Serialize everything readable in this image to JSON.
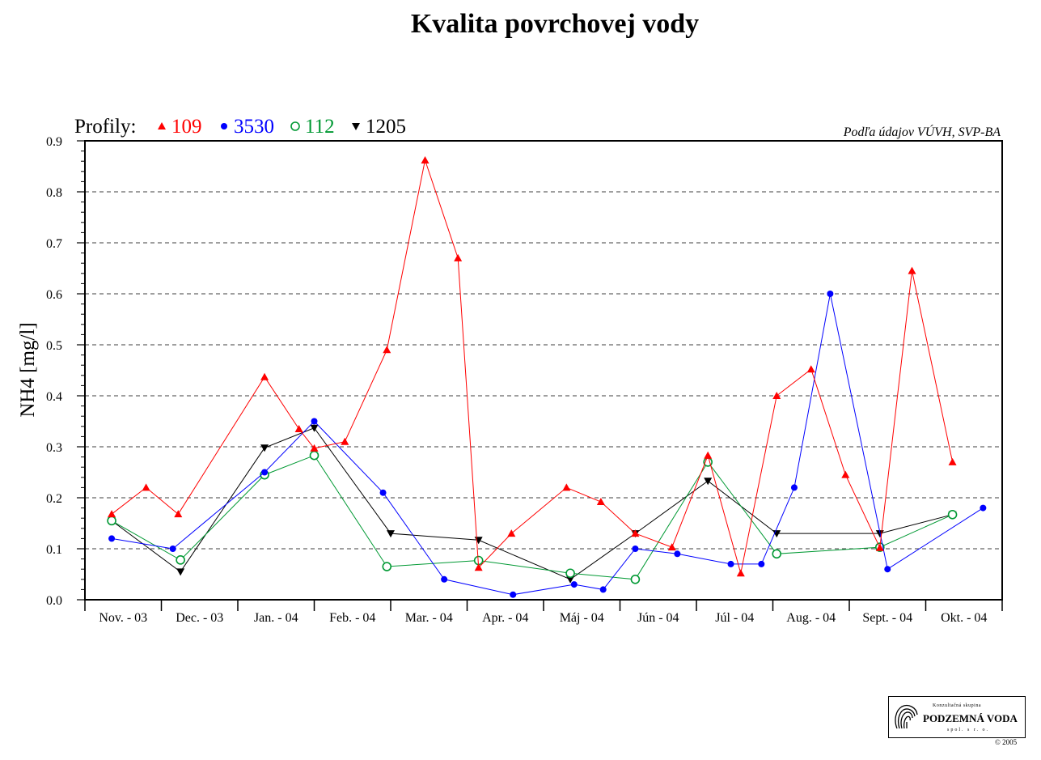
{
  "chart_data": {
    "type": "line",
    "title": "Kvalita povrchovej vody",
    "source": "Podľa údajov VÚVH, SVP-BA",
    "ylabel": "NH4 [mg/l]",
    "ylim": [
      0,
      0.9
    ],
    "yticks": [
      "0.0",
      "0.1",
      "0.2",
      "0.3",
      "0.4",
      "0.5",
      "0.6",
      "0.7",
      "0.8",
      "0.9"
    ],
    "grid": "horizontal dashed",
    "legend_label": "Profily:",
    "months": [
      "Nov. - 03",
      "Dec. - 03",
      "Jan. - 04",
      "Feb. - 04",
      "Mar. - 04",
      "Apr. - 04",
      "Máj - 04",
      "Jún - 04",
      "Júl - 04",
      "Aug. - 04",
      "Sept. - 04",
      "Okt. - 04"
    ],
    "series": [
      {
        "name": "109",
        "color": "#ff0000",
        "marker": "triangle-up",
        "points": [
          [
            0.35,
            0.168
          ],
          [
            0.8,
            0.22
          ],
          [
            1.22,
            0.168
          ],
          [
            2.35,
            0.437
          ],
          [
            2.8,
            0.335
          ],
          [
            3.0,
            0.297
          ],
          [
            3.4,
            0.31
          ],
          [
            3.95,
            0.49
          ],
          [
            4.45,
            0.862
          ],
          [
            4.88,
            0.67
          ],
          [
            5.15,
            0.063
          ],
          [
            5.58,
            0.13
          ],
          [
            6.3,
            0.22
          ],
          [
            6.75,
            0.192
          ],
          [
            7.2,
            0.13
          ],
          [
            7.68,
            0.103
          ],
          [
            8.15,
            0.283
          ],
          [
            8.58,
            0.052
          ],
          [
            9.05,
            0.4
          ],
          [
            9.5,
            0.452
          ],
          [
            9.95,
            0.245
          ],
          [
            10.4,
            0.102
          ],
          [
            10.82,
            0.645
          ],
          [
            11.35,
            0.27
          ]
        ]
      },
      {
        "name": "3530",
        "color": "#0000ff",
        "marker": "circle-filled",
        "points": [
          [
            0.35,
            0.12
          ],
          [
            1.15,
            0.1
          ],
          [
            2.35,
            0.25
          ],
          [
            3.0,
            0.35
          ],
          [
            3.9,
            0.21
          ],
          [
            4.7,
            0.04
          ],
          [
            5.6,
            0.01
          ],
          [
            6.4,
            0.03
          ],
          [
            6.78,
            0.02
          ],
          [
            7.2,
            0.1
          ],
          [
            7.75,
            0.09
          ],
          [
            8.45,
            0.07
          ],
          [
            8.85,
            0.07
          ],
          [
            9.28,
            0.22
          ],
          [
            9.75,
            0.6
          ],
          [
            10.5,
            0.06
          ],
          [
            11.75,
            0.18
          ]
        ]
      },
      {
        "name": "112",
        "color": "#009933",
        "marker": "circle-open",
        "points": [
          [
            0.35,
            0.155
          ],
          [
            1.25,
            0.078
          ],
          [
            2.35,
            0.245
          ],
          [
            3.0,
            0.283
          ],
          [
            3.95,
            0.065
          ],
          [
            5.15,
            0.077
          ],
          [
            6.35,
            0.052
          ],
          [
            7.2,
            0.04
          ],
          [
            8.15,
            0.27
          ],
          [
            9.05,
            0.09
          ],
          [
            10.4,
            0.103
          ],
          [
            11.35,
            0.167
          ]
        ]
      },
      {
        "name": "1205",
        "color": "#000000",
        "marker": "triangle-down",
        "points": [
          [
            0.35,
            0.155
          ],
          [
            1.25,
            0.055
          ],
          [
            2.35,
            0.298
          ],
          [
            3.0,
            0.337
          ],
          [
            4.0,
            0.13
          ],
          [
            5.15,
            0.117
          ],
          [
            6.35,
            0.04
          ],
          [
            7.2,
            0.13
          ],
          [
            8.15,
            0.233
          ],
          [
            9.05,
            0.13
          ],
          [
            10.4,
            0.13
          ],
          [
            11.35,
            0.167
          ]
        ]
      }
    ]
  },
  "logo": {
    "top_text": "Konzultačná skupina",
    "name": "PODZEMNÁ VODA",
    "sub": "spol. s r. o.",
    "copyright": "© 2005"
  }
}
